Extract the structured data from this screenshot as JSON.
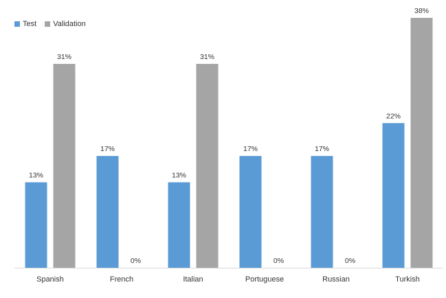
{
  "chart_data": {
    "type": "bar",
    "categories": [
      "Spanish",
      "French",
      "Italian",
      "Portuguese",
      "Russian",
      "Turkish"
    ],
    "series": [
      {
        "name": "Test",
        "color": "#5b9bd5",
        "values": [
          13,
          17,
          13,
          17,
          17,
          22
        ],
        "labels": [
          "13%",
          "17%",
          "13%",
          "17%",
          "17%",
          "22%"
        ]
      },
      {
        "name": "Validation",
        "color": "#a5a5a5",
        "values": [
          31,
          0,
          31,
          0,
          0,
          38
        ],
        "labels": [
          "31%",
          "0%",
          "31%",
          "0%",
          "0%",
          "38%"
        ]
      }
    ],
    "title": "",
    "xlabel": "",
    "ylabel": "",
    "ylim": [
      0,
      38
    ],
    "grid": false,
    "legend_position": "top-left"
  }
}
